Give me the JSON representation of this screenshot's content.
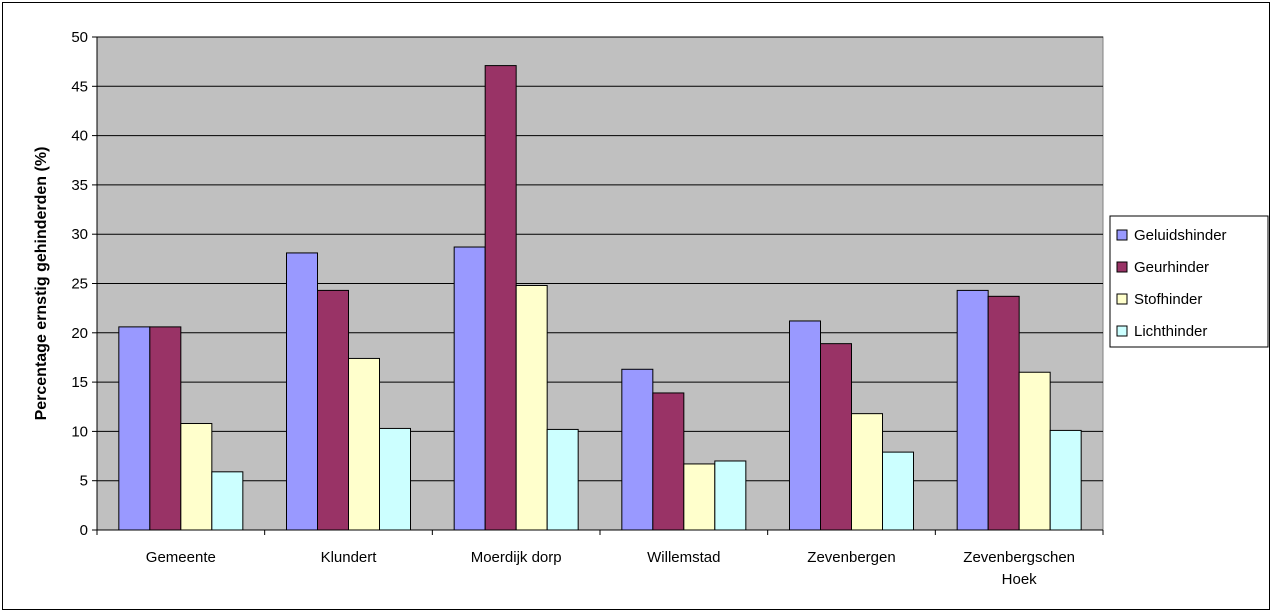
{
  "chart_data": {
    "type": "bar",
    "title": "",
    "xlabel": "",
    "ylabel": "Percentage ernstig gehinderden (%)",
    "ylim": [
      0,
      50
    ],
    "yticks": [
      0,
      5,
      10,
      15,
      20,
      25,
      30,
      35,
      40,
      45,
      50
    ],
    "grid": true,
    "legend_position": "right",
    "plot_background": "#c0c0c0",
    "categories": [
      [
        "Gemeente"
      ],
      [
        "Klundert"
      ],
      [
        "Moerdijk dorp"
      ],
      [
        "Willemstad"
      ],
      [
        "Zevenbergen"
      ],
      [
        "Zevenbergschen",
        "Hoek"
      ]
    ],
    "series": [
      {
        "name": "Geluidshinder",
        "color": "#9999ff",
        "values": [
          20.6,
          28.1,
          28.7,
          16.3,
          21.2,
          24.3
        ]
      },
      {
        "name": "Geurhinder",
        "color": "#993366",
        "values": [
          20.6,
          24.3,
          47.1,
          13.9,
          18.9,
          23.7
        ]
      },
      {
        "name": "Stofhinder",
        "color": "#ffffcc",
        "values": [
          10.8,
          17.4,
          24.8,
          6.7,
          11.8,
          16.0
        ]
      },
      {
        "name": "Lichthinder",
        "color": "#ccffff",
        "values": [
          5.9,
          10.3,
          10.2,
          7.0,
          7.9,
          10.1
        ]
      }
    ]
  }
}
